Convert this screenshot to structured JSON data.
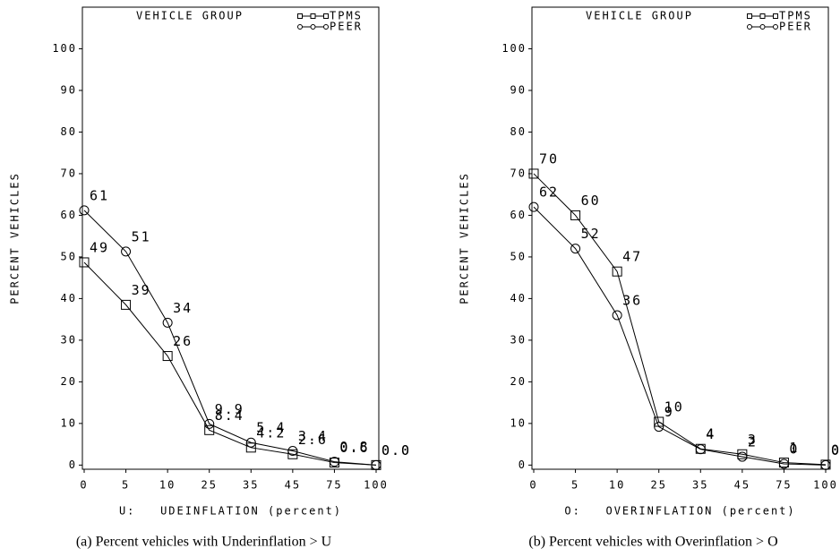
{
  "chart_data": [
    {
      "type": "line",
      "legend_title": "VEHICLE GROUP",
      "x_label": "U:   UDEINFLATION (percent)",
      "y_label": "PERCENT VEHICLES",
      "caption": "(a) Percent vehicles with Underinflation > U",
      "categories": [
        "0",
        "5",
        "10",
        "25",
        "35",
        "45",
        "75",
        "100"
      ],
      "ylim": [
        -1,
        110
      ],
      "yticks": [
        0,
        10,
        20,
        30,
        40,
        50,
        60,
        70,
        80,
        90,
        100
      ],
      "series": [
        {
          "name": "TPMS",
          "marker": "square",
          "color": "#000000",
          "values": [
            48.7,
            38.5,
            26.2,
            8.4,
            4.2,
            2.6,
            0.6,
            0
          ],
          "value_labels": [
            "49",
            "39",
            "26",
            "8.4",
            "4.2",
            "2.6",
            "0.6",
            "0.0"
          ]
        },
        {
          "name": "PEER",
          "marker": "circle",
          "color": "#000000",
          "values": [
            61.2,
            51.3,
            34.2,
            9.9,
            5.4,
            3.4,
            0.8,
            0
          ],
          "value_labels": [
            "61",
            "51",
            "34",
            "9.9",
            "5.4",
            "3.4",
            "0.8",
            "0.0"
          ]
        }
      ]
    },
    {
      "type": "line",
      "legend_title": "VEHICLE GROUP",
      "x_label": "O:   OVERINFLATION (percent)",
      "y_label": "PERCENT VEHICLES",
      "caption": "(b) Percent vehicles with Overinflation > O",
      "categories": [
        "0",
        "5",
        "10",
        "25",
        "35",
        "45",
        "75",
        "100"
      ],
      "ylim": [
        -1,
        110
      ],
      "yticks": [
        0,
        10,
        20,
        30,
        40,
        50,
        60,
        70,
        80,
        90,
        100
      ],
      "series": [
        {
          "name": "TPMS",
          "marker": "square",
          "color": "#000000",
          "values": [
            70,
            60,
            46.5,
            10.4,
            3.9,
            2.6,
            0.6,
            0.1
          ],
          "value_labels": [
            "70",
            "60",
            "47",
            "10",
            "4",
            "3",
            "1",
            "0"
          ]
        },
        {
          "name": "PEER",
          "marker": "circle",
          "color": "#000000",
          "values": [
            62,
            52,
            36,
            9.2,
            3.8,
            2.0,
            0.3,
            0
          ],
          "value_labels": [
            "62",
            "52",
            "36",
            "9",
            "4",
            "2",
            "0",
            "0"
          ]
        }
      ]
    }
  ]
}
